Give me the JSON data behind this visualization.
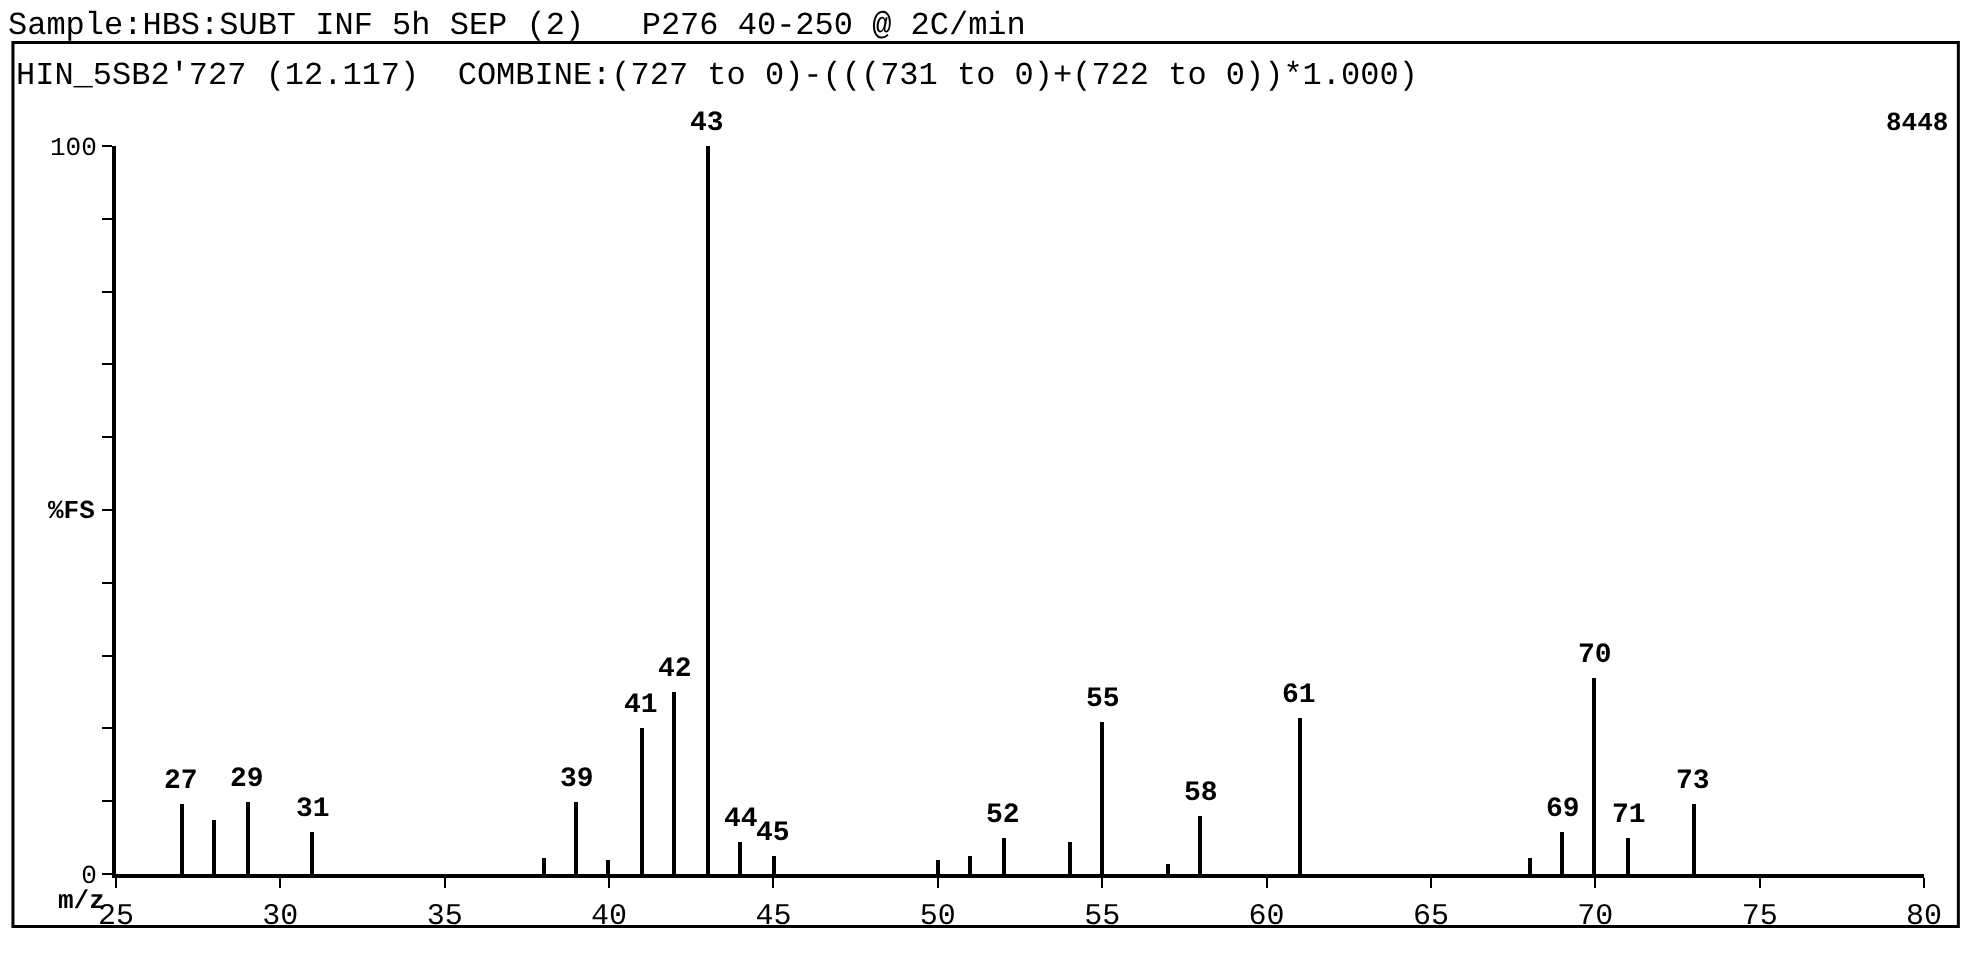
{
  "chart_data": {
    "type": "bar",
    "title": "Sample:HBS:SUBT INF 5h SEP (2)   P276 40-250 @ 2C/min",
    "subtitle": "HIN_5SB2'727 (12.117)  COMBINE:(727 to 0)-(((731 to 0)+(722 to 0))*1.000)",
    "xlabel": "m/z",
    "ylabel": "%FS",
    "x": [
      27,
      28,
      29,
      31,
      38,
      39,
      40,
      41,
      42,
      43,
      44,
      45,
      50,
      51,
      52,
      54,
      55,
      57,
      58,
      61,
      68,
      69,
      70,
      71,
      73
    ],
    "values": [
      9.7,
      7.3,
      10,
      5.8,
      2.1,
      10,
      2,
      20,
      25,
      100,
      4.5,
      2.6,
      2,
      2.6,
      5,
      4.5,
      21,
      1.3,
      8,
      21.5,
      2.3,
      5.8,
      27,
      5,
      9.7
    ],
    "color": "#000000",
    "xlim": [
      25,
      80
    ],
    "xticks": [
      25,
      30,
      35,
      40,
      45,
      50,
      55,
      60,
      65,
      70,
      75,
      80
    ],
    "ylim": [
      0,
      100
    ],
    "yticks": [
      0,
      {
        "value": 10,
        "label": null
      },
      {
        "value": 20,
        "label": null
      },
      {
        "value": 30,
        "label": null
      },
      {
        "value": 40,
        "label": null
      },
      {
        "value": 50,
        "label": null
      },
      {
        "value": 60,
        "label": null
      },
      {
        "value": 70,
        "label": null
      },
      {
        "value": 80,
        "label": null
      },
      {
        "value": 90,
        "label": null
      },
      100
    ],
    "annotations": [
      {
        "text": "27",
        "x": 27,
        "y": 9.7
      },
      {
        "text": "29",
        "x": 29,
        "y": 10
      },
      {
        "text": "31",
        "x": 31,
        "y": 5.8
      },
      {
        "text": "39",
        "x": 39,
        "y": 10
      },
      {
        "text": "41",
        "x": 41,
        "y": 20
      },
      {
        "text": "42",
        "x": 42,
        "y": 25
      },
      {
        "text": "43",
        "x": 43,
        "y": 100
      },
      {
        "text": "44",
        "x": 44,
        "y": 4.5
      },
      {
        "text": "45",
        "x": 45,
        "y": 2.6
      },
      {
        "text": "52",
        "x": 52,
        "y": 5
      },
      {
        "text": "55",
        "x": 55,
        "y": 21
      },
      {
        "text": "58",
        "x": 58,
        "y": 8
      },
      {
        "text": "61",
        "x": 61,
        "y": 21.5
      },
      {
        "text": "69",
        "x": 69,
        "y": 5.8
      },
      {
        "text": "70",
        "x": 70,
        "y": 27
      },
      {
        "text": "71",
        "x": 71,
        "y": 5
      },
      {
        "text": "73",
        "x": 73,
        "y": 9.7
      },
      "8448"
    ]
  }
}
